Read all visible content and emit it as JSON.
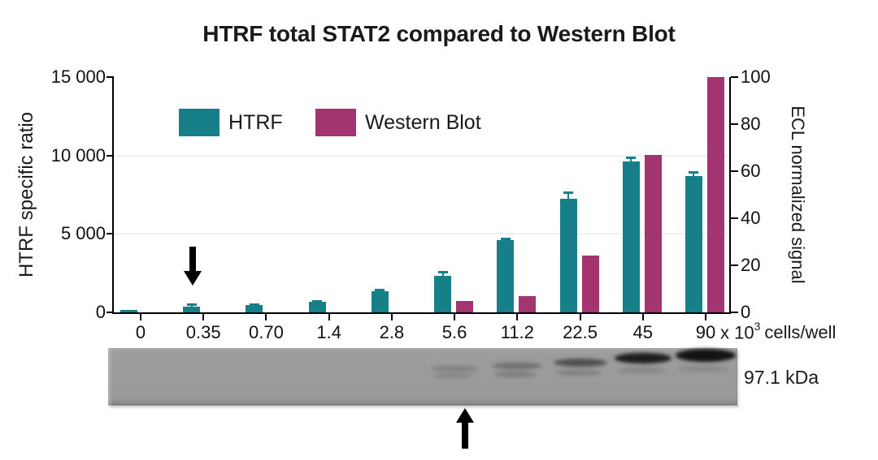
{
  "title": "HTRF total STAT2 compared to Western Blot",
  "legend": {
    "items": [
      {
        "label": "HTRF",
        "color": "#177F87"
      },
      {
        "label": "Western Blot",
        "color": "#A23470"
      }
    ]
  },
  "chart_data": {
    "type": "bar",
    "title": "HTRF total STAT2 compared to Western Blot",
    "categories": [
      "0",
      "0.35",
      "0.70",
      "1.4",
      "2.8",
      "5.6",
      "11.2",
      "22.5",
      "45",
      "90"
    ],
    "x_unit": {
      "base": "x 10",
      "exp": "3",
      "unit": "cells/well"
    },
    "left_axis": {
      "label": "HTRF specific ratio",
      "max": 15000,
      "tick_values": [
        0,
        5000,
        10000,
        15000
      ],
      "tick_labels": [
        "0",
        "5 000",
        "10 000",
        "15 000"
      ]
    },
    "right_axis": {
      "label": "ECL normalized signal",
      "max": 100,
      "tick_values": [
        0,
        20,
        40,
        60,
        80,
        100
      ],
      "tick_labels": [
        "0",
        "20",
        "40",
        "60",
        "80",
        "100"
      ]
    },
    "grid_tick_values": [
      5000,
      10000
    ],
    "series": [
      {
        "name": "HTRF",
        "axis": "left",
        "color": "#177F87",
        "values": [
          180,
          380,
          460,
          680,
          1340,
          2350,
          4600,
          7250,
          9600,
          8700
        ],
        "errors": [
          0,
          120,
          80,
          60,
          130,
          220,
          120,
          420,
          260,
          260
        ]
      },
      {
        "name": "Western Blot",
        "axis": "right",
        "color": "#A23470",
        "values": [
          0,
          0,
          0,
          0,
          0,
          5,
          7,
          24,
          67,
          100
        ],
        "errors": [
          0,
          0,
          0,
          0,
          0,
          0,
          0,
          0,
          0,
          0
        ]
      }
    ],
    "legend_position": "top-left-inside"
  },
  "annotations": {
    "down_arrow_at_category": "0.35",
    "up_arrow_at_category": "5.6"
  },
  "blot": {
    "label": "97.1 kDa",
    "lanes": [
      {
        "category": "5.6",
        "upper": 0.2,
        "lower": 0.16
      },
      {
        "category": "11.2",
        "upper": 0.32,
        "lower": 0.22
      },
      {
        "category": "22.5",
        "upper": 0.55,
        "lower": 0.2
      },
      {
        "category": "45",
        "upper": 0.92,
        "lower": 0.15
      },
      {
        "category": "90",
        "upper": 1.0,
        "lower": 0.12
      }
    ]
  }
}
